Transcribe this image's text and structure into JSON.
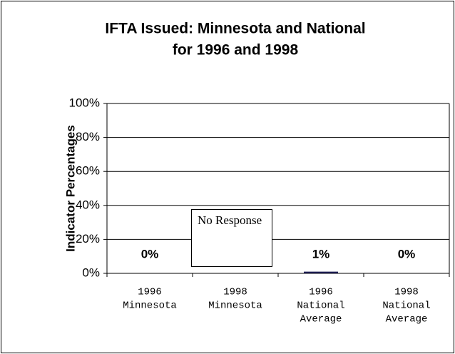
{
  "chart_data": {
    "type": "bar",
    "title": [
      "IFTA Issued: Minnesota and National",
      "for 1996 and 1998"
    ],
    "y_label": "Indicator Percentages",
    "categories": [
      [
        "1996",
        "Minnesota"
      ],
      [
        "1998",
        "Minnesota"
      ],
      [
        "1996",
        "National",
        "Average"
      ],
      [
        "1998",
        "National",
        "Average"
      ]
    ],
    "values": [
      0,
      null,
      1,
      0
    ],
    "value_labels": [
      "0%",
      null,
      "1%",
      "0%"
    ],
    "color": "#1c1c50",
    "annotation": "No Response",
    "ylim": [
      0,
      100
    ],
    "yticks": [
      {
        "value": 0,
        "label": "0%"
      },
      {
        "value": 20,
        "label": "20%"
      },
      {
        "value": 40,
        "label": "40%"
      },
      {
        "value": 60,
        "label": "60%"
      },
      {
        "value": 80,
        "label": "80%"
      },
      {
        "value": 100,
        "label": "100%"
      }
    ],
    "grid": true
  }
}
